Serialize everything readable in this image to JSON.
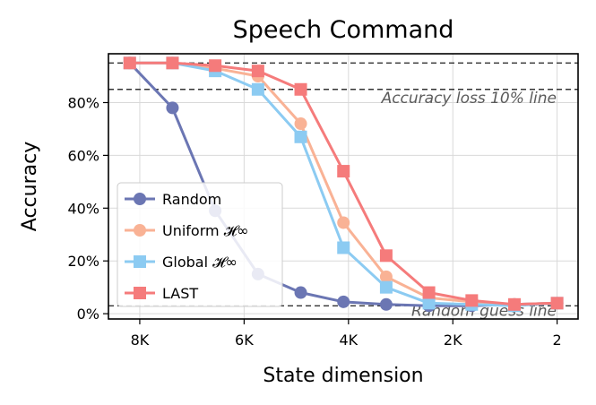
{
  "chart_data": {
    "type": "line",
    "title": "Speech Command",
    "xlabel": "State dimension",
    "ylabel": "Accuracy",
    "x": [
      8192,
      7373,
      6554,
      5734,
      4915,
      4096,
      3277,
      2458,
      1638,
      819,
      2
    ],
    "xlim": [
      8600,
      -400
    ],
    "ylim": [
      -0.02,
      0.985
    ],
    "x_ticks": [
      {
        "value": 8000,
        "label": "8K"
      },
      {
        "value": 6000,
        "label": "6K"
      },
      {
        "value": 4000,
        "label": "4K"
      },
      {
        "value": 2000,
        "label": "2K"
      },
      {
        "value": 2,
        "label": "2"
      }
    ],
    "y_ticks": [
      {
        "value": 0.0,
        "label": "0%"
      },
      {
        "value": 0.2,
        "label": "20%"
      },
      {
        "value": 0.4,
        "label": "40%"
      },
      {
        "value": 0.6,
        "label": "60%"
      },
      {
        "value": 0.8,
        "label": "80%"
      }
    ],
    "grid": true,
    "legend_position": "lower-left",
    "series": [
      {
        "name": "Random",
        "color": "#6b76b3",
        "marker": "circle",
        "values": [
          0.95,
          0.78,
          0.39,
          0.15,
          0.08,
          0.045,
          0.035,
          0.03,
          0.03,
          0.035,
          0.04
        ]
      },
      {
        "name": "Uniform 𝓗∞",
        "color": "#f9b295",
        "marker": "circle",
        "values": [
          0.95,
          0.95,
          0.93,
          0.9,
          0.72,
          0.345,
          0.14,
          0.06,
          0.045,
          0.035,
          0.04
        ]
      },
      {
        "name": "Global 𝓗∞",
        "color": "#8ccbf2",
        "marker": "square",
        "values": [
          0.95,
          0.95,
          0.92,
          0.85,
          0.67,
          0.25,
          0.1,
          0.04,
          0.035,
          0.03,
          0.04
        ]
      },
      {
        "name": "LAST",
        "color": "#f57b7b",
        "marker": "square",
        "values": [
          0.95,
          0.95,
          0.94,
          0.92,
          0.85,
          0.54,
          0.22,
          0.08,
          0.05,
          0.035,
          0.04
        ]
      }
    ],
    "reference_lines": [
      {
        "value": 0.95,
        "label": ""
      },
      {
        "value": 0.85,
        "label": "Accuracy loss 10% line"
      },
      {
        "value": 0.03,
        "label": "Random guess line"
      }
    ]
  }
}
